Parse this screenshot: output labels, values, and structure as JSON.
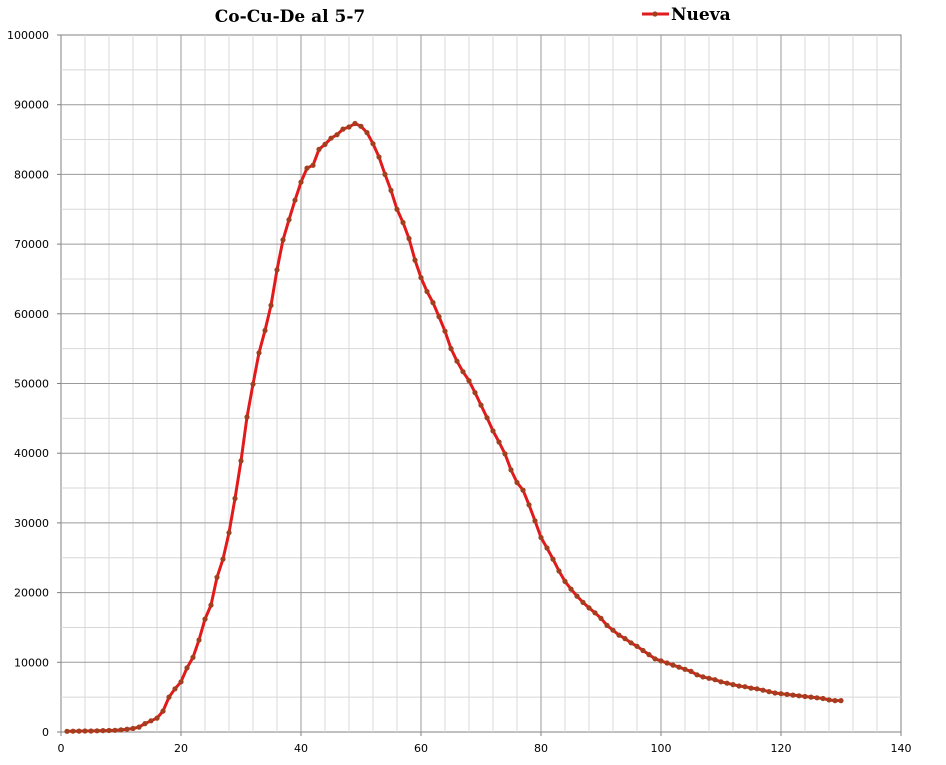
{
  "chart_data": {
    "type": "line",
    "title": "Co-Cu-De al 5-7",
    "xlabel": "",
    "ylabel": "",
    "xlim": [
      0,
      140
    ],
    "ylim": [
      0,
      100000
    ],
    "x_ticks": [
      0,
      20,
      40,
      60,
      80,
      100,
      120,
      140
    ],
    "y_ticks": [
      0,
      10000,
      20000,
      30000,
      40000,
      50000,
      60000,
      70000,
      80000,
      90000,
      100000
    ],
    "grid": true,
    "legend": "top-right",
    "series": [
      {
        "name": "Nueva",
        "color": "#e31a1c",
        "marker_color": "#a0401e",
        "x": [
          1,
          2,
          3,
          4,
          5,
          6,
          7,
          8,
          9,
          10,
          11,
          12,
          13,
          14,
          15,
          16,
          17,
          18,
          19,
          20,
          21,
          22,
          23,
          24,
          25,
          26,
          27,
          28,
          29,
          30,
          31,
          32,
          33,
          34,
          35,
          36,
          37,
          38,
          39,
          40,
          41,
          42,
          43,
          44,
          45,
          46,
          47,
          48,
          49,
          50,
          51,
          52,
          53,
          54,
          55,
          56,
          57,
          58,
          59,
          60,
          61,
          62,
          63,
          64,
          65,
          66,
          67,
          68,
          69,
          70,
          71,
          72,
          73,
          74,
          75,
          76,
          77,
          78,
          79,
          80,
          81,
          82,
          83,
          84,
          85,
          86,
          87,
          88,
          89,
          90,
          91,
          92,
          93,
          94,
          95,
          96,
          97,
          98,
          99,
          100,
          101,
          102,
          103,
          104,
          105,
          106,
          107,
          108,
          109,
          110,
          111,
          112,
          113,
          114,
          115,
          116,
          117,
          118,
          119,
          120,
          121,
          122,
          123,
          124,
          125,
          126,
          127,
          128,
          129,
          130
        ],
        "y": [
          100,
          120,
          130,
          140,
          150,
          170,
          200,
          220,
          250,
          300,
          400,
          500,
          700,
          1200,
          1600,
          2000,
          3000,
          5000,
          6200,
          7200,
          9200,
          10700,
          13200,
          16200,
          18200,
          22200,
          24800,
          28600,
          33500,
          38900,
          45200,
          49900,
          54400,
          57600,
          61200,
          66300,
          70600,
          73500,
          76300,
          78900,
          80900,
          81300,
          83600,
          84300,
          85200,
          85700,
          86500,
          86800,
          87300,
          86900,
          86000,
          84400,
          82500,
          80000,
          77700,
          75000,
          73100,
          70800,
          67700,
          65200,
          63200,
          61600,
          59600,
          57500,
          55000,
          53200,
          51700,
          50400,
          48700,
          46900,
          45100,
          43200,
          41600,
          39900,
          37600,
          35800,
          34700,
          32600,
          30300,
          27900,
          26400,
          24800,
          23100,
          21600,
          20500,
          19500,
          18600,
          17800,
          17100,
          16300,
          15300,
          14600,
          13900,
          13400,
          12800,
          12300,
          11700,
          11100,
          10500,
          10200,
          9900,
          9600,
          9300,
          9000,
          8700,
          8200,
          7900,
          7700,
          7500,
          7200,
          7000,
          6800,
          6600,
          6500,
          6300,
          6200,
          6000,
          5800,
          5600,
          5500,
          5400,
          5300,
          5200,
          5100,
          5000,
          4900,
          4800,
          4600,
          4500,
          4500
        ]
      }
    ]
  }
}
